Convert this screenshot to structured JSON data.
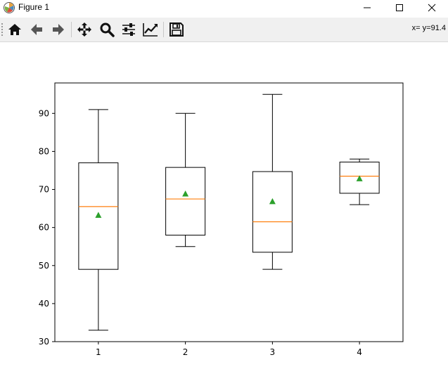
{
  "window": {
    "title": "Figure 1"
  },
  "toolbar": {
    "buttons": [
      {
        "name": "home-button",
        "icon": "home-icon",
        "tooltip": "Home"
      },
      {
        "name": "back-button",
        "icon": "arrow-left-icon",
        "tooltip": "Back"
      },
      {
        "name": "forward-button",
        "icon": "arrow-right-icon",
        "tooltip": "Forward"
      },
      {
        "name": "pan-button",
        "icon": "move-icon",
        "tooltip": "Pan"
      },
      {
        "name": "zoom-button",
        "icon": "magnifier-icon",
        "tooltip": "Zoom"
      },
      {
        "name": "subplots-button",
        "icon": "sliders-icon",
        "tooltip": "Subplots"
      },
      {
        "name": "customize-button",
        "icon": "line-chart-icon",
        "tooltip": "Customize"
      },
      {
        "name": "save-button",
        "icon": "floppy-disk-icon",
        "tooltip": "Save"
      }
    ],
    "coordinates": "x= y=91.4"
  },
  "chart_data": {
    "type": "boxplot",
    "categories": [
      "1",
      "2",
      "3",
      "4"
    ],
    "boxes": [
      {
        "whisker_low": 33,
        "q1": 49,
        "median": 65.5,
        "q3": 77,
        "whisker_high": 91,
        "mean": 63.2
      },
      {
        "whisker_low": 55,
        "q1": 58,
        "median": 67.5,
        "q3": 75.8,
        "whisker_high": 90,
        "mean": 68.8
      },
      {
        "whisker_low": 49,
        "q1": 53.5,
        "median": 61.5,
        "q3": 74.7,
        "whisker_high": 95,
        "mean": 66.8
      },
      {
        "whisker_low": 66,
        "q1": 69,
        "median": 73.5,
        "q3": 77.2,
        "whisker_high": 78,
        "mean": 72.8
      }
    ],
    "ylim": [
      30,
      98
    ],
    "yticks": [
      30,
      40,
      50,
      60,
      70,
      80,
      90
    ],
    "grid": false,
    "colors": {
      "box": "#000000",
      "median": "#ff7f0e",
      "mean": "#2ca02c"
    }
  }
}
